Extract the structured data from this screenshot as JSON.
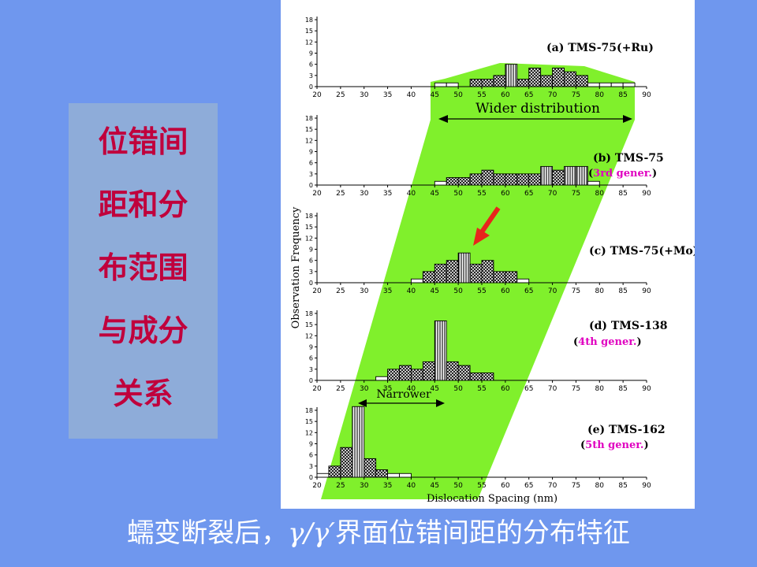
{
  "sidebar": {
    "lines": [
      "位错间",
      "距和分",
      "布范围",
      "与成分",
      "关系"
    ],
    "text_color": "#c0003c",
    "box_color": "#8eacd9"
  },
  "caption": {
    "prefix": "蠕变断裂后，",
    "symbol": "γ/γ′",
    "suffix": "界面位错间距的分布特征"
  },
  "colors": {
    "background": "#6f97ee",
    "band": "#80f02c",
    "arrow": "#e8251c",
    "magenta": "#e000c0"
  },
  "chart_data": {
    "type": "bar",
    "ylabel": "Observation Frequency",
    "xlabel": "Dislocation Spacing (nm)",
    "xlim": [
      20,
      90
    ],
    "ylim": [
      0,
      18
    ],
    "x_ticks": [
      20,
      25,
      30,
      35,
      40,
      45,
      50,
      55,
      60,
      65,
      70,
      75,
      80,
      85,
      90
    ],
    "y_ticks": [
      0,
      3,
      6,
      9,
      12,
      15,
      18
    ],
    "bin_width": 2.5,
    "annotations": {
      "wider": "Wider distribution",
      "narrower": "Narrower"
    },
    "panels": [
      {
        "id": "a",
        "label": "(a) TMS-75(+Ru)",
        "sub": "",
        "bins": [
          [
            46.25,
            1
          ],
          [
            48.75,
            1
          ],
          [
            53.75,
            2
          ],
          [
            56.25,
            2
          ],
          [
            58.75,
            3
          ],
          [
            61.25,
            6
          ],
          [
            63.75,
            2
          ],
          [
            66.25,
            5
          ],
          [
            68.75,
            3
          ],
          [
            71.25,
            5
          ],
          [
            73.75,
            4
          ],
          [
            76.25,
            3
          ],
          [
            78.75,
            1
          ],
          [
            81.25,
            1
          ],
          [
            83.75,
            1
          ],
          [
            86.25,
            1
          ]
        ]
      },
      {
        "id": "b",
        "label": "(b) TMS-75",
        "sub": "(3rd gener.)",
        "bins": [
          [
            46.25,
            1
          ],
          [
            48.75,
            2
          ],
          [
            51.25,
            2
          ],
          [
            53.75,
            3
          ],
          [
            56.25,
            4
          ],
          [
            58.75,
            3
          ],
          [
            61.25,
            3
          ],
          [
            63.75,
            3
          ],
          [
            66.25,
            3
          ],
          [
            68.75,
            5
          ],
          [
            71.25,
            4
          ],
          [
            73.75,
            5
          ],
          [
            76.25,
            5
          ],
          [
            78.75,
            1
          ]
        ]
      },
      {
        "id": "c",
        "label": "(c) TMS-75(+Mo)",
        "sub": "",
        "bins": [
          [
            41.25,
            1
          ],
          [
            43.75,
            3
          ],
          [
            46.25,
            5
          ],
          [
            48.75,
            6
          ],
          [
            51.25,
            8
          ],
          [
            53.75,
            5
          ],
          [
            56.25,
            6
          ],
          [
            58.75,
            3
          ],
          [
            61.25,
            3
          ],
          [
            63.75,
            1
          ]
        ]
      },
      {
        "id": "d",
        "label": "(d) TMS-138",
        "sub": "(4th gener.)",
        "bins": [
          [
            33.75,
            1
          ],
          [
            36.25,
            3
          ],
          [
            38.75,
            4
          ],
          [
            41.25,
            3
          ],
          [
            43.75,
            5
          ],
          [
            46.25,
            16
          ],
          [
            48.75,
            5
          ],
          [
            51.25,
            4
          ],
          [
            53.75,
            2
          ],
          [
            56.25,
            2
          ]
        ]
      },
      {
        "id": "e",
        "label": "(e) TMS-162",
        "sub": "(5th gener.)",
        "bins": [
          [
            21.25,
            1
          ],
          [
            23.75,
            3
          ],
          [
            26.25,
            8
          ],
          [
            28.75,
            19
          ],
          [
            31.25,
            5
          ],
          [
            33.75,
            2
          ],
          [
            36.25,
            1
          ],
          [
            38.75,
            1
          ]
        ]
      }
    ]
  }
}
